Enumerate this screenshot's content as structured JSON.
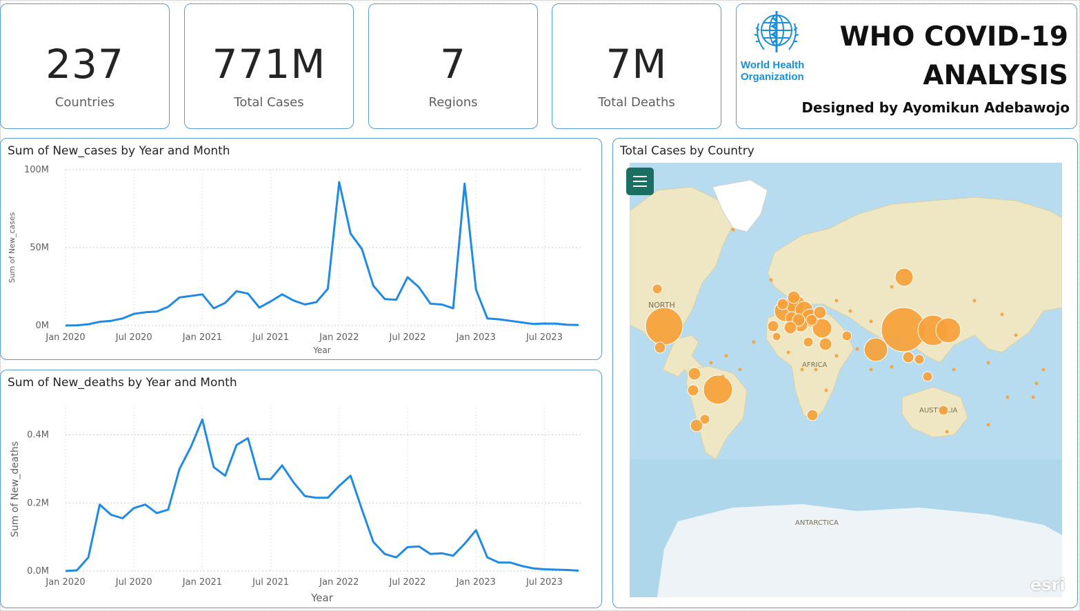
{
  "kpis": [
    {
      "value": "237",
      "label": "Countries"
    },
    {
      "value": "771M",
      "label": "Total Cases"
    },
    {
      "value": "7",
      "label": "Regions"
    },
    {
      "value": "7M",
      "label": "Total Deaths"
    }
  ],
  "header": {
    "logo_text_line1": "World Health",
    "logo_text_line2": "Organization",
    "title_line1": "WHO COVID-19",
    "title_line2": "ANALYSIS",
    "subtitle": "Designed by Ayomikun Adebawojo"
  },
  "colors": {
    "card_border": "#5a9bd5",
    "line": "#1f8ae6",
    "bubble": "#f7a13a",
    "ocean": "#b7dcef",
    "land": "#efe7c3",
    "menu": "#1b6e62"
  },
  "icons": {
    "menu": "hamburger-menu-icon",
    "logo": "who-emblem-icon"
  },
  "map": {
    "title": "Total Cases by Country",
    "labels": {
      "north": "NORTH",
      "africa": "AFRICA",
      "australia": "AUSTRALIA",
      "antarctica": "ANTARCTICA"
    },
    "attribution": "esri"
  },
  "chart_data": [
    {
      "type": "line",
      "title": "Sum of New_cases by Year and Month",
      "xlabel": "Year",
      "ylabel": "Sum of New_cases",
      "x_ticks": [
        "Jan 2020",
        "Jul 2020",
        "Jan 2021",
        "Jul 2021",
        "Jan 2022",
        "Jul 2022",
        "Jan 2023",
        "Jul 2023"
      ],
      "y_ticks": [
        "0M",
        "50M",
        "100M"
      ],
      "ylim": [
        0,
        100
      ],
      "y_unit": "millions",
      "grid": true,
      "x": [
        "2020-01",
        "2020-02",
        "2020-03",
        "2020-04",
        "2020-05",
        "2020-06",
        "2020-07",
        "2020-08",
        "2020-09",
        "2020-10",
        "2020-11",
        "2020-12",
        "2021-01",
        "2021-02",
        "2021-03",
        "2021-04",
        "2021-05",
        "2021-06",
        "2021-07",
        "2021-08",
        "2021-09",
        "2021-10",
        "2021-11",
        "2021-12",
        "2022-01",
        "2022-02",
        "2022-03",
        "2022-04",
        "2022-05",
        "2022-06",
        "2022-07",
        "2022-08",
        "2022-09",
        "2022-10",
        "2022-11",
        "2022-12",
        "2023-01",
        "2023-02",
        "2023-03",
        "2023-04",
        "2023-05",
        "2023-06",
        "2023-07",
        "2023-08",
        "2023-09",
        "2023-10"
      ],
      "values": [
        0.01,
        0.1,
        0.8,
        2.4,
        3.0,
        4.5,
        7.5,
        8.5,
        9.0,
        12.0,
        18.0,
        19.0,
        20.0,
        11.0,
        14.5,
        22.0,
        20.5,
        11.5,
        15.5,
        20.0,
        16.0,
        13.5,
        15.0,
        23.5,
        92.0,
        59.0,
        49.0,
        25.5,
        17.0,
        16.5,
        31.0,
        24.5,
        14.0,
        13.5,
        11.0,
        91.0,
        23.0,
        4.5,
        4.0,
        3.0,
        2.0,
        1.0,
        1.3,
        1.2,
        0.5,
        0.3
      ]
    },
    {
      "type": "line",
      "title": "Sum of New_deaths by Year and Month",
      "xlabel": "Year",
      "ylabel": "Sum of New_deaths",
      "x_ticks": [
        "Jan 2020",
        "Jul 2020",
        "Jan 2021",
        "Jul 2021",
        "Jan 2022",
        "Jul 2022",
        "Jan 2023",
        "Jul 2023"
      ],
      "y_ticks": [
        "0.0M",
        "0.2M",
        "0.4M"
      ],
      "ylim": [
        0,
        0.48
      ],
      "y_unit": "millions",
      "grid": true,
      "x": [
        "2020-01",
        "2020-02",
        "2020-03",
        "2020-04",
        "2020-05",
        "2020-06",
        "2020-07",
        "2020-08",
        "2020-09",
        "2020-10",
        "2020-11",
        "2020-12",
        "2021-01",
        "2021-02",
        "2021-03",
        "2021-04",
        "2021-05",
        "2021-06",
        "2021-07",
        "2021-08",
        "2021-09",
        "2021-10",
        "2021-11",
        "2021-12",
        "2022-01",
        "2022-02",
        "2022-03",
        "2022-04",
        "2022-05",
        "2022-06",
        "2022-07",
        "2022-08",
        "2022-09",
        "2022-10",
        "2022-11",
        "2022-12",
        "2023-01",
        "2023-02",
        "2023-03",
        "2023-04",
        "2023-05",
        "2023-06",
        "2023-07",
        "2023-08",
        "2023-09",
        "2023-10"
      ],
      "values": [
        0.0,
        0.002,
        0.04,
        0.195,
        0.165,
        0.155,
        0.185,
        0.195,
        0.17,
        0.18,
        0.3,
        0.365,
        0.445,
        0.305,
        0.28,
        0.37,
        0.39,
        0.27,
        0.27,
        0.31,
        0.26,
        0.22,
        0.215,
        0.215,
        0.25,
        0.28,
        0.18,
        0.085,
        0.05,
        0.04,
        0.07,
        0.072,
        0.05,
        0.052,
        0.045,
        0.08,
        0.12,
        0.04,
        0.025,
        0.025,
        0.015,
        0.008,
        0.005,
        0.004,
        0.003,
        0.001
      ]
    }
  ]
}
